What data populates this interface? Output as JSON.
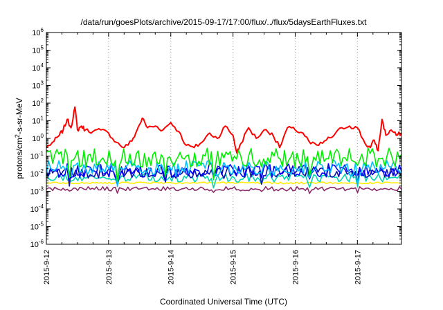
{
  "chart_data": {
    "type": "line",
    "title": "/data/run/goesPlots/archive/2015-09-17/17:00/flux/../flux/5daysEarthFluxes.txt",
    "xlabel": "Coordinated Universal Time (UTC)",
    "ylabel": {
      "prefix": "protons/cm",
      "sup": "2",
      "suffix": "-s-sr-MeV"
    },
    "yscale": "log",
    "ylim": [
      1e-06,
      1000000.0
    ],
    "xlim": [
      "2015-09-12",
      "2015-09-17T17:00"
    ],
    "x_ticks": [
      "2015-9-12",
      "2015-9-13",
      "2015-9-14",
      "2015-9-15",
      "2015-9-16",
      "2015-9-17"
    ],
    "y_ticks": [
      {
        "base": "10",
        "exp": "-6"
      },
      {
        "base": "10",
        "exp": "-5"
      },
      {
        "base": "10",
        "exp": "-4"
      },
      {
        "base": "10",
        "exp": "-3"
      },
      {
        "base": "10",
        "exp": "-2"
      },
      {
        "base": "10",
        "exp": "-1"
      },
      {
        "base": "10",
        "exp": "0"
      },
      {
        "base": "10",
        "exp": "1"
      },
      {
        "base": "10",
        "exp": "2"
      },
      {
        "base": "10",
        "exp": "3"
      },
      {
        "base": "10",
        "exp": "4"
      },
      {
        "base": "10",
        "exp": "5"
      },
      {
        "base": "10",
        "exp": "6"
      }
    ],
    "grid": "vertical dotted at day ticks",
    "legend": "none",
    "series": [
      {
        "color": "#ff0000",
        "x": [
          "2015-09-12T00:00",
          "2015-09-12T03:00",
          "2015-09-12T05:00",
          "2015-09-12T06:30",
          "2015-09-12T08:00",
          "2015-09-12T09:30",
          "2015-09-12T11:00",
          "2015-09-12T12:00",
          "2015-09-12T13:30",
          "2015-09-12T15:00",
          "2015-09-12T18:00",
          "2015-09-12T21:00",
          "2015-09-13T00:00",
          "2015-09-13T03:00",
          "2015-09-13T06:00",
          "2015-09-13T09:00",
          "2015-09-13T11:00",
          "2015-09-13T13:00",
          "2015-09-13T15:00",
          "2015-09-13T18:00",
          "2015-09-13T21:00",
          "2015-09-14T00:00",
          "2015-09-14T03:00",
          "2015-09-14T06:00",
          "2015-09-14T09:00",
          "2015-09-14T12:00",
          "2015-09-14T15:00",
          "2015-09-14T18:00",
          "2015-09-14T21:00",
          "2015-09-15T00:00",
          "2015-09-15T01:30",
          "2015-09-15T03:00",
          "2015-09-15T06:00",
          "2015-09-15T09:00",
          "2015-09-15T12:00",
          "2015-09-15T15:00",
          "2015-09-15T18:00",
          "2015-09-15T21:00",
          "2015-09-16T00:00",
          "2015-09-16T03:00",
          "2015-09-16T06:00",
          "2015-09-16T09:00",
          "2015-09-16T12:00",
          "2015-09-16T15:00",
          "2015-09-16T18:00",
          "2015-09-16T21:00",
          "2015-09-17T00:00",
          "2015-09-17T03:00",
          "2015-09-17T05:00",
          "2015-09-17T06:30",
          "2015-09-17T08:00",
          "2015-09-17T09:30",
          "2015-09-17T11:00",
          "2015-09-17T13:00",
          "2015-09-17T15:00",
          "2015-09-17T17:00"
        ],
        "y": [
          0.3,
          0.7,
          1.5,
          3,
          12,
          4,
          60,
          3,
          5,
          3,
          2.5,
          3,
          2,
          0.6,
          0.3,
          0.7,
          3,
          14,
          4,
          5,
          3,
          8,
          2.5,
          0.4,
          0.3,
          0.6,
          2,
          1,
          5,
          1.5,
          0.15,
          0.5,
          4,
          1,
          3,
          2,
          0.3,
          4,
          3,
          2,
          0.5,
          0.4,
          0.8,
          1.5,
          4,
          5,
          4,
          0.5,
          0.3,
          0.8,
          0.2,
          12,
          1.5,
          3,
          1.5,
          2
        ]
      },
      {
        "color": "#00ee00",
        "level": 0.08,
        "amplitude": 0.55
      },
      {
        "color": "#00c0ff",
        "level": 0.02,
        "amplitude": 0.45
      },
      {
        "color": "#0000ff",
        "level": 0.015,
        "amplitude": 0.4
      },
      {
        "color": "#1010b0",
        "level": 0.012,
        "amplitude": 0.35
      },
      {
        "color": "#00d8b0",
        "level": 0.006,
        "amplitude": 0.25
      },
      {
        "color": "#ffee00",
        "level": 0.003,
        "amplitude": 0.05
      },
      {
        "color": "#8b2a6a",
        "level": 0.0014,
        "amplitude": 0.12
      }
    ]
  }
}
